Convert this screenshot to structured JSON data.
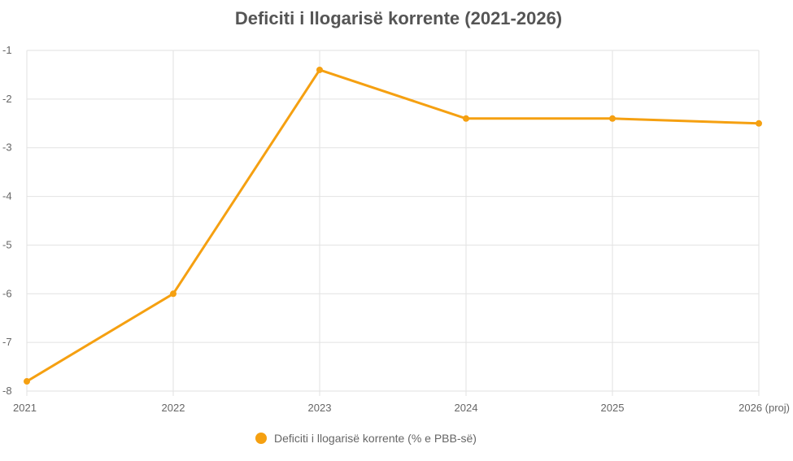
{
  "chart_data": {
    "type": "line",
    "title": "Deficiti i llogarisë korrente (2021-2026)",
    "xlabel": "",
    "ylabel": "",
    "categories": [
      "2021",
      "2022",
      "2023",
      "2024",
      "2025",
      "2026 (proj)"
    ],
    "series": [
      {
        "name": "Deficiti i llogarisë korrente (% e PBB-së)",
        "values": [
          -7.8,
          -6.0,
          -1.4,
          -2.4,
          -2.4,
          -2.5
        ],
        "color": "#f5a011"
      }
    ],
    "ylim": [
      -8,
      -1
    ],
    "yticks": [
      "-1",
      "-2",
      "-3",
      "-4",
      "-5",
      "-6",
      "-7",
      "-8"
    ],
    "grid": true,
    "legend_position": "bottom"
  }
}
